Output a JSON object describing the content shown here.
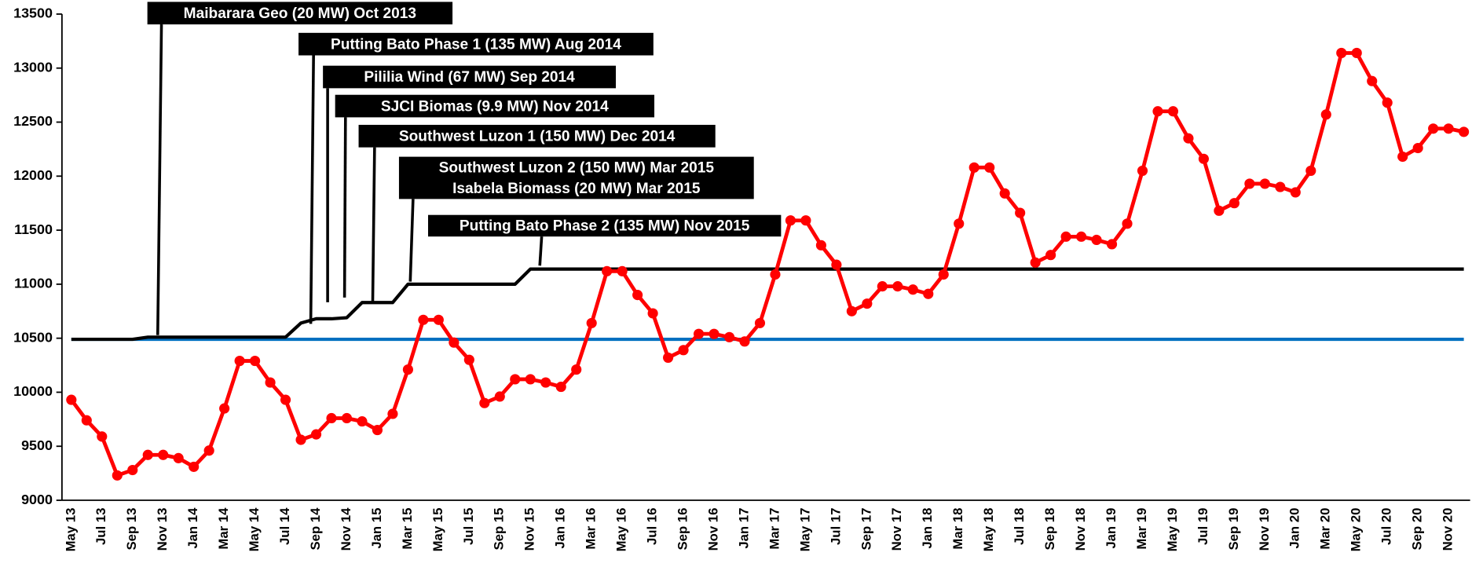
{
  "chart_data": {
    "type": "line",
    "categories": [
      "May 13",
      null,
      "Jul 13",
      null,
      "Sep 13",
      null,
      "Nov 13",
      null,
      "Jan 14",
      null,
      "Mar 14",
      null,
      "May 14",
      null,
      "Jul 14",
      null,
      "Sep 14",
      null,
      "Nov 14",
      null,
      "Jan 15",
      null,
      "Mar 15",
      null,
      "May 15",
      null,
      "Jul 15",
      null,
      "Sep 15",
      null,
      "Nov 15",
      null,
      "Jan 16",
      null,
      "Mar 16",
      null,
      "May 16",
      null,
      "Jul 16",
      null,
      "Sep 16",
      null,
      "Nov 16",
      null,
      "Jan 17",
      null,
      "Mar 17",
      null,
      "May 17",
      null,
      "Jul 17",
      null,
      "Sep 17",
      null,
      "Nov 17",
      null,
      "Jan 18",
      null,
      "Mar 18",
      null,
      "May 18",
      null,
      "Jul 18",
      null,
      "Sep 18",
      null,
      "Nov 18",
      null,
      "Jan 19",
      null,
      "Mar 19",
      null,
      "May 19",
      null,
      "Jul 19",
      null,
      "Sep 19",
      null,
      "Nov 19",
      null,
      "Jan 20",
      null,
      "Mar 20",
      null,
      "May 20",
      null,
      "Jul 20",
      null,
      "Sep 20",
      null,
      "Nov 20",
      null
    ],
    "series": [
      {
        "color": "#0070c0",
        "markers": false,
        "values": [
          10490,
          10490,
          10490,
          10490,
          10490,
          10490,
          10490,
          10490,
          10490,
          10490,
          10490,
          10490,
          10490,
          10490,
          10490,
          10490,
          10490,
          10490,
          10490,
          10490,
          10490,
          10490,
          10490,
          10490,
          10490,
          10490,
          10490,
          10490,
          10490,
          10490,
          10490,
          10490,
          10490,
          10490,
          10490,
          10490,
          10490,
          10490,
          10490,
          10490,
          10490,
          10490,
          10490,
          10490,
          10490,
          10490,
          10490,
          10490,
          10490,
          10490,
          10490,
          10490,
          10490,
          10490,
          10490,
          10490,
          10490,
          10490,
          10490,
          10490,
          10490,
          10490,
          10490,
          10490,
          10490,
          10490,
          10490,
          10490,
          10490,
          10490,
          10490,
          10490,
          10490,
          10490,
          10490,
          10490,
          10490,
          10490,
          10490,
          10490,
          10490,
          10490,
          10490,
          10490,
          10490,
          10490,
          10490,
          10490,
          10490,
          10490,
          10490,
          10490
        ]
      },
      {
        "color": "#000000",
        "markers": false,
        "values": [
          10490,
          10490,
          10490,
          10490,
          10490,
          10510,
          10510,
          10510,
          10510,
          10510,
          10510,
          10510,
          10510,
          10510,
          10510,
          10640,
          10680,
          10680,
          10690,
          10830,
          10830,
          10830,
          11000,
          11000,
          11000,
          11000,
          11000,
          11000,
          11000,
          11000,
          11140,
          11140,
          11140,
          11140,
          11140,
          11140,
          11140,
          11140,
          11140,
          11140,
          11140,
          11140,
          11140,
          11140,
          11140,
          11140,
          11140,
          11140,
          11140,
          11140,
          11140,
          11140,
          11140,
          11140,
          11140,
          11140,
          11140,
          11140,
          11140,
          11140,
          11140,
          11140,
          11140,
          11140,
          11140,
          11140,
          11140,
          11140,
          11140,
          11140,
          11140,
          11140,
          11140,
          11140,
          11140,
          11140,
          11140,
          11140,
          11140,
          11140,
          11140,
          11140,
          11140,
          11140,
          11140,
          11140,
          11140,
          11140,
          11140,
          11140,
          11140,
          11140
        ]
      },
      {
        "color": "#ff0000",
        "markers": true,
        "values": [
          9930,
          9740,
          9590,
          9230,
          9280,
          9420,
          9420,
          9390,
          9310,
          9460,
          9850,
          10290,
          10290,
          10090,
          9930,
          9560,
          9610,
          9760,
          9760,
          9730,
          9650,
          9800,
          10210,
          10670,
          10670,
          10460,
          10300,
          9900,
          9960,
          10120,
          10120,
          10090,
          10050,
          10210,
          10640,
          11120,
          11120,
          10900,
          10730,
          10320,
          10390,
          10540,
          10540,
          10510,
          10470,
          10640,
          11090,
          11590,
          11590,
          11360,
          11180,
          10750,
          10820,
          10980,
          10980,
          10950,
          10910,
          11090,
          11560,
          12080,
          12080,
          11840,
          11660,
          11200,
          11270,
          11440,
          11440,
          11410,
          11370,
          11560,
          12050,
          12600,
          12600,
          12350,
          12160,
          11680,
          11750,
          11930,
          11930,
          11900,
          11850,
          12050,
          12570,
          13140,
          13140,
          12880,
          12680,
          12180,
          12260,
          12440,
          12440,
          12410
        ]
      }
    ],
    "ylim": [
      9000,
      13500
    ],
    "yticks": [
      9000,
      9500,
      10000,
      10500,
      11000,
      11500,
      12000,
      12500,
      13000,
      13500
    ],
    "annotations": [
      [
        "Maibarara Geo (20 MW) Oct 2013"
      ],
      [
        "Putting Bato Phase 1 (135 MW) Aug 2014"
      ],
      [
        "Pililia Wind (67 MW) Sep 2014"
      ],
      [
        "SJCI Biomas (9.9 MW) Nov 2014"
      ],
      [
        "Southwest Luzon 1 (150 MW) Dec 2014"
      ],
      [
        "Southwest Luzon 2 (150 MW) Mar 2015",
        "Isabela Biomass (20 MW) Mar 2015"
      ],
      [
        "Putting Bato Phase 2 (135 MW) Nov 2015"
      ]
    ]
  }
}
